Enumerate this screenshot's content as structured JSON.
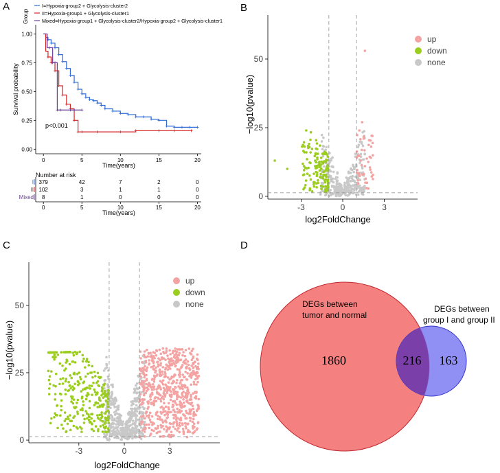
{
  "panels": {
    "A": "A",
    "B": "B",
    "C": "C",
    "D": "D"
  },
  "colors": {
    "group1": "#2e6bd6",
    "group2": "#d42424",
    "mixed": "#6a3d9a",
    "up": "#f4a3a3",
    "down": "#9acd1e",
    "none": "#c8c8c8",
    "venn_left": "#f48080",
    "venn_right": "#7b7bf2",
    "venn_overlap": "#7a3fa8"
  },
  "chart_data": [
    {
      "panel": "A",
      "type": "line",
      "subtype": "kaplan-meier",
      "legend_title": "Group",
      "legend": [
        "I=Hypoxia-group2 + Glycolysis-cluster2",
        "II=Hypoxia-group1 + Glycolysis-cluster1",
        "Mixed=Hypoxia-group1 + Glycolysis-cluster2/Hypoxia-group2 + Glycolysis-cluster1"
      ],
      "ylabel": "Survival probability",
      "xlabel": "Time(years)",
      "xlim": [
        -1,
        20.5
      ],
      "ylim": [
        -0.04,
        1.08
      ],
      "xticks": [
        "0",
        "5",
        "10",
        "15",
        "20"
      ],
      "yticks": [
        "0.00",
        "0.25",
        "0.50",
        "0.75",
        "1.00"
      ],
      "annotation": "p<0.001",
      "series": [
        {
          "name": "I",
          "color_key": "group1",
          "x": [
            0,
            0.3,
            0.6,
            1,
            1.5,
            2,
            2.5,
            3,
            3.5,
            4,
            4.5,
            5,
            5.5,
            6,
            6.5,
            7,
            7.5,
            8,
            9,
            10,
            11,
            12,
            13,
            14,
            15,
            16,
            17,
            18,
            19,
            20
          ],
          "y": [
            1,
            0.97,
            0.95,
            0.92,
            0.88,
            0.82,
            0.76,
            0.7,
            0.64,
            0.58,
            0.52,
            0.48,
            0.45,
            0.43,
            0.42,
            0.4,
            0.38,
            0.35,
            0.33,
            0.31,
            0.3,
            0.28,
            0.28,
            0.26,
            0.25,
            0.2,
            0.19,
            0.19,
            0.19,
            0.19
          ]
        },
        {
          "name": "II",
          "color_key": "group2",
          "x": [
            0,
            0.3,
            0.6,
            1,
            1.5,
            2,
            2.5,
            3,
            3.5,
            4,
            4.5,
            5,
            7,
            10,
            12,
            15,
            17,
            19.2
          ],
          "y": [
            1,
            0.85,
            0.8,
            0.75,
            0.68,
            0.55,
            0.47,
            0.39,
            0.35,
            0.25,
            0.15,
            0.15,
            0.15,
            0.15,
            0.16,
            0.16,
            0.16,
            0.16
          ]
        },
        {
          "name": "Mixed",
          "color_key": "mixed",
          "x": [
            0,
            0.5,
            0.8,
            1.2,
            1.5,
            1.8,
            2.2,
            3.5,
            4,
            5
          ],
          "y": [
            1,
            0.88,
            0.88,
            0.75,
            0.75,
            0.34,
            0.34,
            0.34,
            0.34,
            0.34
          ]
        }
      ],
      "risk_table": {
        "title": "Number at risk",
        "xlabel": "Time(years)",
        "xticks": [
          "0",
          "5",
          "10",
          "15",
          "20"
        ],
        "rows": [
          {
            "label": "I",
            "color_key": "group1",
            "values": [
              "379",
              "42",
              "7",
              "2",
              "0"
            ]
          },
          {
            "label": "II",
            "color_key": "group2",
            "values": [
              "102",
              "3",
              "1",
              "1",
              "0"
            ]
          },
          {
            "label": "Mixed",
            "color_key": "mixed",
            "values": [
              "8",
              "1",
              "0",
              "0",
              "0"
            ]
          }
        ]
      }
    },
    {
      "panel": "B",
      "type": "scatter",
      "subtype": "volcano",
      "xlabel": "log2FoldChange",
      "ylabel": "−log10(pvalue)",
      "xlim": [
        -5.4,
        5.4
      ],
      "ylim": [
        -1,
        66
      ],
      "xticks": [
        "-3",
        "0",
        "3"
      ],
      "yticks": [
        "0",
        "25",
        "50"
      ],
      "thresholds": {
        "log2fc": [
          -1,
          1
        ],
        "pvalue_line": 1.3
      },
      "legend": [
        "up",
        "down",
        "none"
      ],
      "summary": {
        "up_max_y": 53,
        "down_min_x": -5.0,
        "down_max_y": 24,
        "none_max_y": 24
      }
    },
    {
      "panel": "C",
      "type": "scatter",
      "subtype": "volcano",
      "xlabel": "log2FoldChange",
      "ylabel": "−log10(pvalue)",
      "xlim": [
        -6.3,
        6.3
      ],
      "ylim": [
        -1,
        66
      ],
      "xticks": [
        "-3",
        "0",
        "3"
      ],
      "yticks": [
        "0",
        "25",
        "50"
      ],
      "thresholds": {
        "log2fc": [
          -1,
          1
        ],
        "pvalue_line": 1.3
      },
      "legend": [
        "up",
        "down",
        "none"
      ],
      "summary": {
        "up_x_range": [
          1,
          4.9
        ],
        "down_x_range": [
          -5,
          -1
        ],
        "max_y": 35
      }
    },
    {
      "panel": "D",
      "type": "venn",
      "sets": [
        {
          "label": "DEGs between\ntumor and normal",
          "only": "1860"
        },
        {
          "label": "DEGs between\ngroup I and group II",
          "only": "163"
        }
      ],
      "intersection": "216"
    }
  ]
}
